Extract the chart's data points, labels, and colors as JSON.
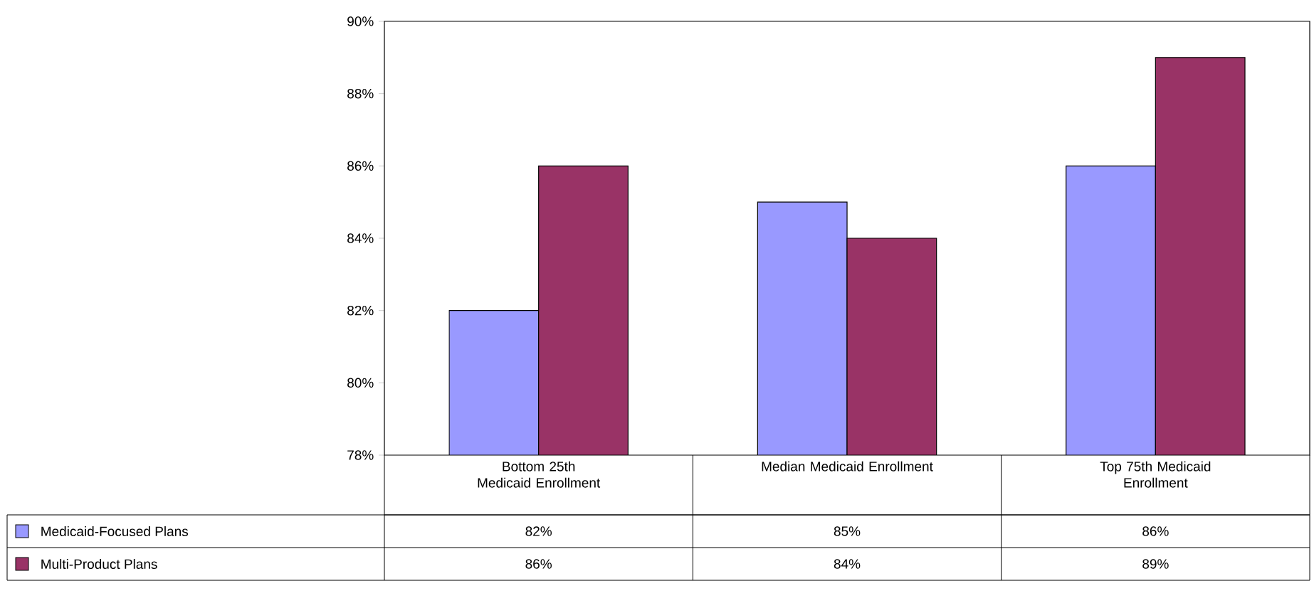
{
  "chart_data": {
    "type": "bar",
    "categories": [
      "Bottom 25th Medicaid Enrollment",
      "Median Medicaid Enrollment",
      "Top 75th Medicaid Enrollment"
    ],
    "series": [
      {
        "name": "Medicaid-Focused Plans",
        "color": "#9999ff",
        "values": [
          82,
          85,
          86
        ],
        "value_labels": [
          "82%",
          "85%",
          "86%"
        ]
      },
      {
        "name": "Multi-Product Plans",
        "color": "#993366",
        "values": [
          86,
          84,
          89
        ],
        "value_labels": [
          "86%",
          "84%",
          "89%"
        ]
      }
    ],
    "ylim": [
      78,
      90
    ],
    "yticks": [
      {
        "value": 78,
        "label": "78%"
      },
      {
        "value": 80,
        "label": "80%"
      },
      {
        "value": 82,
        "label": "82%"
      },
      {
        "value": 84,
        "label": "84%"
      },
      {
        "value": 86,
        "label": "86%"
      },
      {
        "value": 88,
        "label": "88%"
      },
      {
        "value": 90,
        "label": "90%"
      }
    ],
    "legend": "bottom"
  }
}
